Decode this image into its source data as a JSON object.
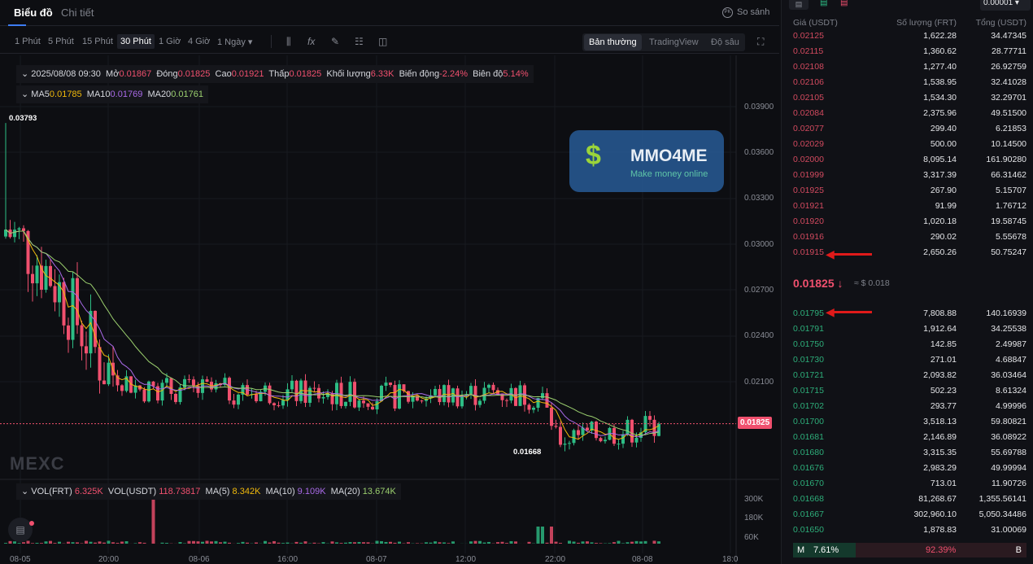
{
  "tabs": {
    "chart": "Biểu đồ",
    "detail": "Chi tiết",
    "compare": "So sánh",
    "compare_icon": "PK"
  },
  "toolbar": {
    "timeframes": [
      "1 Phút",
      "5 Phút",
      "15 Phút",
      "30 Phút",
      "1 Giờ",
      "4 Giờ",
      "1 Ngày ▾"
    ],
    "selected": "30 Phút",
    "tool_icons": [
      "candlestick-icon",
      "indicator-fx-icon",
      "pencil-icon",
      "layout-icon",
      "camera-icon"
    ],
    "modes": [
      "Bản thường",
      "TradingView",
      "Độ sâu"
    ],
    "selected_mode": "Bản thường"
  },
  "ohlc": {
    "date": "2025/08/08 09:30",
    "open_label": "Mở",
    "open": "0.01867",
    "close_label": "Đóng",
    "close": "0.01825",
    "high_label": "Cao",
    "high": "0.01921",
    "low_label": "Thấp",
    "low": "0.01825",
    "vol_label": "Khối lượng",
    "vol": "6.33K",
    "change_label": "Biến động",
    "change": "-2.24%",
    "amp_label": "Biên độ",
    "amp": "5.14%"
  },
  "ma": {
    "ma5_label": "MA5",
    "ma5": "0.01785",
    "ma10_label": "MA10",
    "ma10": "0.01769",
    "ma20_label": "MA20",
    "ma20": "0.01761"
  },
  "price_axis": [
    "0.03900",
    "0.03600",
    "0.03300",
    "0.03000",
    "0.02700",
    "0.02400",
    "0.02100"
  ],
  "high_marker": "0.03793",
  "low_marker": "0.01668",
  "last_price_tag": "0.01825",
  "watermark": "MEXC",
  "volume": {
    "vol_frt_label": "VOL(FRT)",
    "vol_frt": "6.325K",
    "vol_usdt_label": "VOL(USDT)",
    "vol_usdt": "118.73817",
    "ma5_label": "MA(5)",
    "ma5": "8.342K",
    "ma10_label": "MA(10)",
    "ma10": "9.109K",
    "ma20_label": "MA(20)",
    "ma20": "13.674K",
    "axis": [
      "300K",
      "180K",
      "60K"
    ]
  },
  "time_axis": [
    "08-05",
    "20:00",
    "08-06",
    "16:00",
    "08-07",
    "12:00",
    "22:00",
    "08-08",
    "18:0"
  ],
  "colors": {
    "up": "#2dbd85",
    "down": "#f0506e",
    "ma5": "#f0b90b",
    "ma10": "#a96ae8",
    "ma20": "#9bcf6e"
  },
  "orderbook": {
    "precision": "0.00001",
    "headers": {
      "price": "Giá (USDT)",
      "qty": "Số lượng (FRT)",
      "total": "Tổng (USDT)"
    },
    "asks": [
      [
        "0.02125",
        "1,622.28",
        "34.47345"
      ],
      [
        "0.02115",
        "1,360.62",
        "28.77711"
      ],
      [
        "0.02108",
        "1,277.40",
        "26.92759"
      ],
      [
        "0.02106",
        "1,538.95",
        "32.41028"
      ],
      [
        "0.02105",
        "1,534.30",
        "32.29701"
      ],
      [
        "0.02084",
        "2,375.96",
        "49.51500"
      ],
      [
        "0.02077",
        "299.40",
        "6.21853"
      ],
      [
        "0.02029",
        "500.00",
        "10.14500"
      ],
      [
        "0.02000",
        "8,095.14",
        "161.90280"
      ],
      [
        "0.01999",
        "3,317.39",
        "66.31462"
      ],
      [
        "0.01925",
        "267.90",
        "5.15707"
      ],
      [
        "0.01921",
        "91.99",
        "1.76712"
      ],
      [
        "0.01920",
        "1,020.18",
        "19.58745"
      ],
      [
        "0.01916",
        "290.02",
        "5.55678"
      ],
      [
        "0.01915",
        "2,650.26",
        "50.75247"
      ]
    ],
    "last_price": "0.01825",
    "last_arrow": "↓",
    "last_usd": "≈ $ 0.018",
    "bids": [
      [
        "0.01795",
        "7,808.88",
        "140.16939"
      ],
      [
        "0.01791",
        "1,912.64",
        "34.25538"
      ],
      [
        "0.01750",
        "142.85",
        "2.49987"
      ],
      [
        "0.01730",
        "271.01",
        "4.68847"
      ],
      [
        "0.01721",
        "2,093.82",
        "36.03464"
      ],
      [
        "0.01715",
        "502.23",
        "8.61324"
      ],
      [
        "0.01702",
        "293.77",
        "4.99996"
      ],
      [
        "0.01700",
        "3,518.13",
        "59.80821"
      ],
      [
        "0.01681",
        "2,146.89",
        "36.08922"
      ],
      [
        "0.01680",
        "3,315.35",
        "55.69788"
      ],
      [
        "0.01676",
        "2,983.29",
        "49.99994"
      ],
      [
        "0.01670",
        "713.01",
        "11.90726"
      ],
      [
        "0.01668",
        "81,268.67",
        "1,355.56141"
      ],
      [
        "0.01667",
        "302,960.10",
        "5,050.34486"
      ],
      [
        "0.01650",
        "1,878.83",
        "31.00069"
      ]
    ],
    "buy_label": "M",
    "buy_pct": "7.61%",
    "sell_pct": "92.39%",
    "sell_label": "B",
    "buy_ratio": 7.61
  },
  "overlay": {
    "brand": "MMO4ME",
    "tagline": "Make money online"
  }
}
